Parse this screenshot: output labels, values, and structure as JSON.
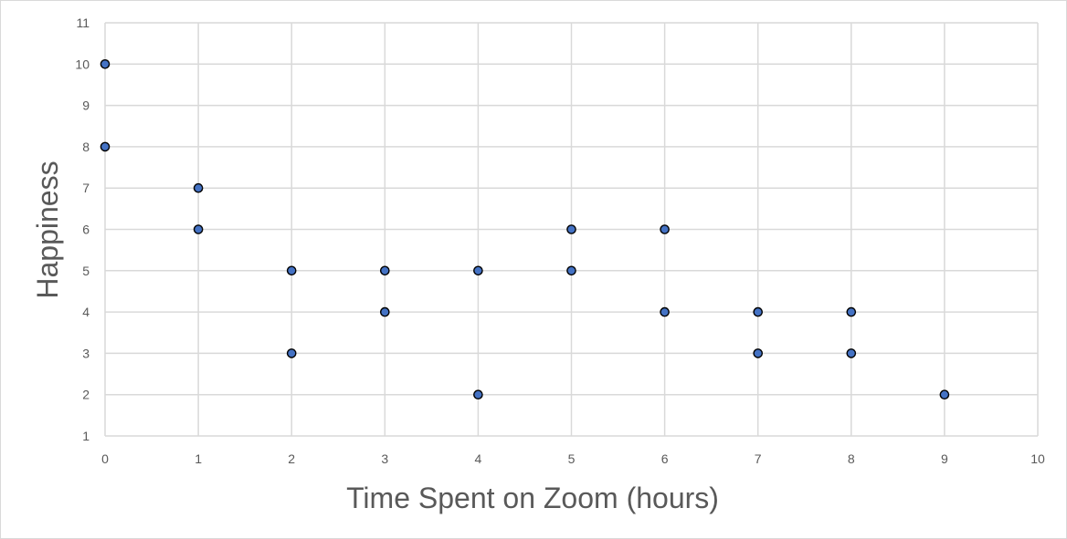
{
  "chart_data": {
    "type": "scatter",
    "title": "",
    "xlabel": "Time Spent on Zoom (hours)",
    "ylabel": "Happiness",
    "xlim": [
      0,
      10
    ],
    "ylim": [
      1,
      11
    ],
    "x_ticks": [
      "0",
      "1",
      "2",
      "3",
      "4",
      "5",
      "6",
      "7",
      "8",
      "9",
      "10"
    ],
    "y_ticks": [
      "1",
      "2",
      "3",
      "4",
      "5",
      "6",
      "7",
      "8",
      "9",
      "10",
      "11"
    ],
    "grid": true,
    "legend": "none",
    "marker_color": "#4472c4",
    "marker_edge_color": "#000000",
    "grid_color": "#d9d9d9",
    "points": [
      {
        "x": 0,
        "y": 10
      },
      {
        "x": 0,
        "y": 8
      },
      {
        "x": 1,
        "y": 7
      },
      {
        "x": 1,
        "y": 6
      },
      {
        "x": 2,
        "y": 5
      },
      {
        "x": 2,
        "y": 3
      },
      {
        "x": 3,
        "y": 5
      },
      {
        "x": 3,
        "y": 4
      },
      {
        "x": 4,
        "y": 5
      },
      {
        "x": 4,
        "y": 2
      },
      {
        "x": 5,
        "y": 6
      },
      {
        "x": 5,
        "y": 5
      },
      {
        "x": 6,
        "y": 6
      },
      {
        "x": 6,
        "y": 4
      },
      {
        "x": 7,
        "y": 4
      },
      {
        "x": 7,
        "y": 3
      },
      {
        "x": 8,
        "y": 4
      },
      {
        "x": 8,
        "y": 3
      },
      {
        "x": 9,
        "y": 2
      }
    ]
  }
}
